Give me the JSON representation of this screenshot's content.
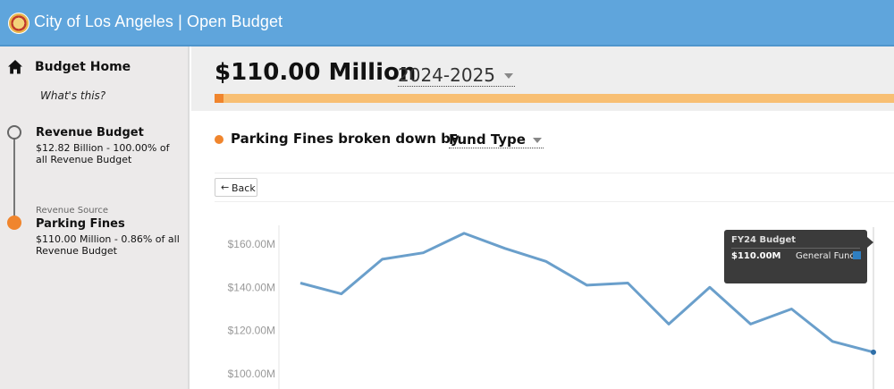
{
  "app": {
    "title": "City of Los Angeles | Open Budget",
    "seal_icon": "city-seal-icon"
  },
  "sidebar": {
    "home_label": "Budget Home",
    "whats_this": "What's this?",
    "revenue": {
      "title": "Revenue Budget",
      "desc": "$12.82 Billion - 100.00% of all Revenue Budget"
    },
    "source": {
      "caption": "Revenue Source",
      "title": "Parking Fines",
      "desc": "$110.00 Million - 0.86% of all Revenue Budget"
    }
  },
  "header": {
    "amount": "$110.00 Million",
    "year": "2024-2025",
    "progress_fraction": 0.0086
  },
  "breakdown": {
    "subject": "Parking Fines broken down by",
    "dimension": "Fund Type"
  },
  "back_label": "Back",
  "tooltip": {
    "title": "FY24 Budget",
    "value": "$110.00M",
    "fund": "General Fund",
    "swatch_color": "#2f7fc1"
  },
  "colors": {
    "line": "#6a9fcb",
    "accent": "#f0852d",
    "header_bar": "#5fa5dc"
  },
  "chart_data": {
    "type": "line",
    "ytick_labels": [
      "$160.00M",
      "$140.00M",
      "$120.00M",
      "$100.00M"
    ],
    "yticks": [
      160,
      140,
      120,
      100
    ],
    "ylim": [
      95,
      168
    ],
    "series": [
      {
        "values": [
          142,
          137,
          153,
          156,
          165,
          158,
          152,
          141,
          142,
          123,
          140,
          123,
          130,
          115,
          110
        ]
      }
    ]
  }
}
